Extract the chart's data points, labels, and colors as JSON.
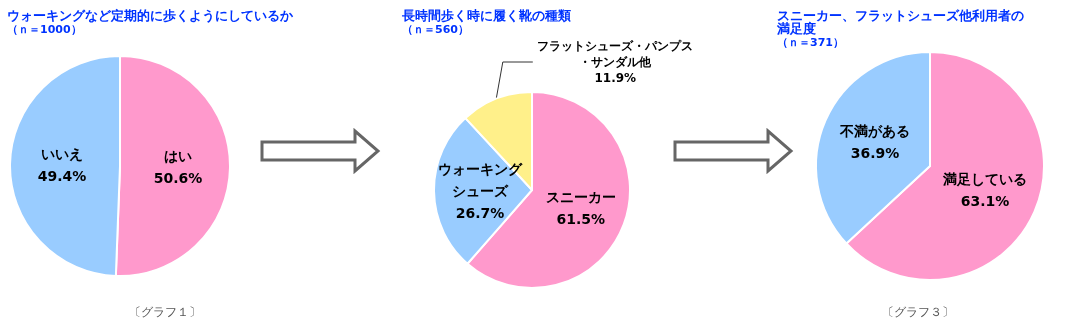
{
  "chart_data": [
    {
      "type": "pie",
      "title": "ウォーキングなど定期的に歩くようにしているか",
      "subtitle": "（ｎ＝1000）",
      "categories": [
        "はい",
        "いいえ"
      ],
      "values": [
        50.6,
        49.4
      ],
      "colors": [
        "#ff99cc",
        "#99ccff"
      ],
      "value_labels": [
        "50.6%",
        "49.4%"
      ],
      "annotations": [
        "〔グラフ１〕"
      ]
    },
    {
      "type": "pie",
      "title": "長時間歩く時に履く靴の種類",
      "subtitle": "（ｎ＝560）",
      "categories": [
        "スニーカー",
        "ウォーキングシューズ",
        "フラットシューズ・パンプス・サンダル他"
      ],
      "values": [
        61.5,
        26.7,
        11.9
      ],
      "colors": [
        "#ff99cc",
        "#99ccff",
        "#fff08a"
      ],
      "value_labels": [
        "61.5%",
        "26.7%",
        "11.9%"
      ]
    },
    {
      "type": "pie",
      "title": "スニーカー、フラットシューズ他利用者の満足度",
      "subtitle": "（ｎ＝371）",
      "categories": [
        "満足している",
        "不満がある"
      ],
      "values": [
        63.1,
        36.9
      ],
      "colors": [
        "#ff99cc",
        "#99ccff"
      ],
      "value_labels": [
        "63.1%",
        "36.9%"
      ],
      "annotations": [
        "〔グラフ３〕"
      ]
    }
  ]
}
